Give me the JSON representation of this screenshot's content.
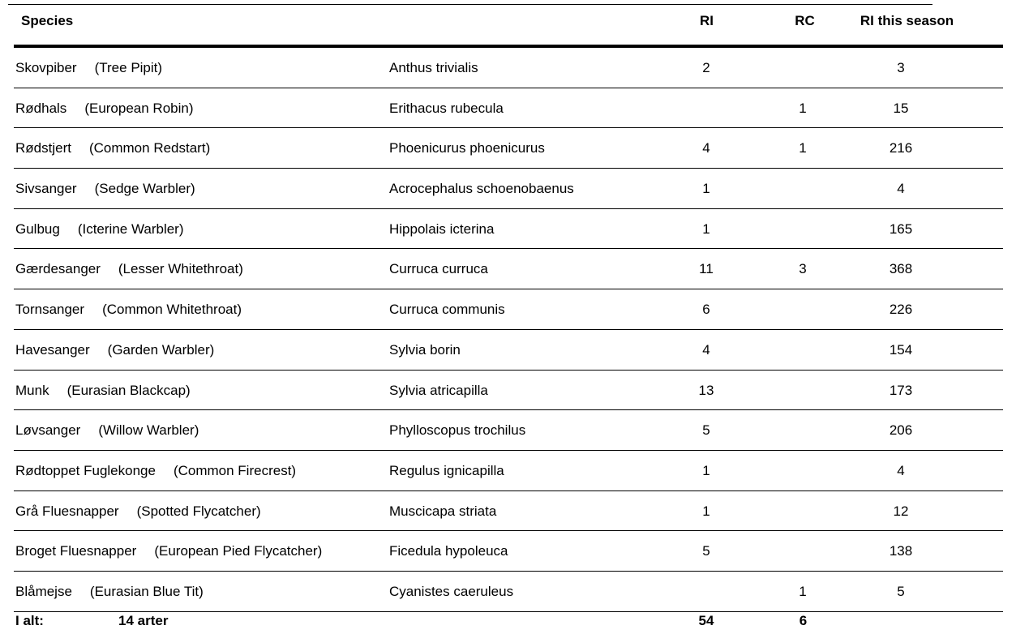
{
  "header": {
    "species": "Species",
    "ri": "RI",
    "rc": "RC",
    "ri_season": "RI this season"
  },
  "rows": [
    {
      "danish": "Skovpiber",
      "english": "(Tree Pipit)",
      "latin": "Anthus trivialis",
      "ri": "2",
      "rc": "",
      "season": "3"
    },
    {
      "danish": "Rødhals",
      "english": "(European Robin)",
      "latin": "Erithacus rubecula",
      "ri": "",
      "rc": "1",
      "season": "15"
    },
    {
      "danish": "Rødstjert",
      "english": "(Common Redstart)",
      "latin": "Phoenicurus phoenicurus",
      "ri": "4",
      "rc": "1",
      "season": "216"
    },
    {
      "danish": "Sivsanger",
      "english": "(Sedge Warbler)",
      "latin": "Acrocephalus schoenobaenus",
      "ri": "1",
      "rc": "",
      "season": "4"
    },
    {
      "danish": "Gulbug",
      "english": "(Icterine Warbler)",
      "latin": "Hippolais icterina",
      "ri": "1",
      "rc": "",
      "season": "165"
    },
    {
      "danish": "Gærdesanger",
      "english": "(Lesser Whitethroat)",
      "latin": "Curruca curruca",
      "ri": "11",
      "rc": "3",
      "season": "368"
    },
    {
      "danish": "Tornsanger",
      "english": "(Common Whitethroat)",
      "latin": "Curruca communis",
      "ri": "6",
      "rc": "",
      "season": "226"
    },
    {
      "danish": "Havesanger",
      "english": "(Garden Warbler)",
      "latin": "Sylvia borin",
      "ri": "4",
      "rc": "",
      "season": "154"
    },
    {
      "danish": "Munk",
      "english": "(Eurasian Blackcap)",
      "latin": "Sylvia atricapilla",
      "ri": "13",
      "rc": "",
      "season": "173"
    },
    {
      "danish": "Løvsanger",
      "english": "(Willow Warbler)",
      "latin": "Phylloscopus trochilus",
      "ri": "5",
      "rc": "",
      "season": "206"
    },
    {
      "danish": "Rødtoppet Fuglekonge",
      "english": "(Common Firecrest)",
      "latin": "Regulus ignicapilla",
      "ri": "1",
      "rc": "",
      "season": "4"
    },
    {
      "danish": "Grå Fluesnapper",
      "english": "(Spotted Flycatcher)",
      "latin": "Muscicapa striata",
      "ri": "1",
      "rc": "",
      "season": "12"
    },
    {
      "danish": "Broget Fluesnapper",
      "english": "(European Pied Flycatcher)",
      "latin": "Ficedula hypoleuca",
      "ri": "5",
      "rc": "",
      "season": "138"
    },
    {
      "danish": "Blåmejse",
      "english": "(Eurasian Blue Tit)",
      "latin": "Cyanistes caeruleus",
      "ri": "",
      "rc": "1",
      "season": "5"
    }
  ],
  "total": {
    "label": "I alt:",
    "count": "14 arter",
    "ri": "54",
    "rc": "6"
  }
}
